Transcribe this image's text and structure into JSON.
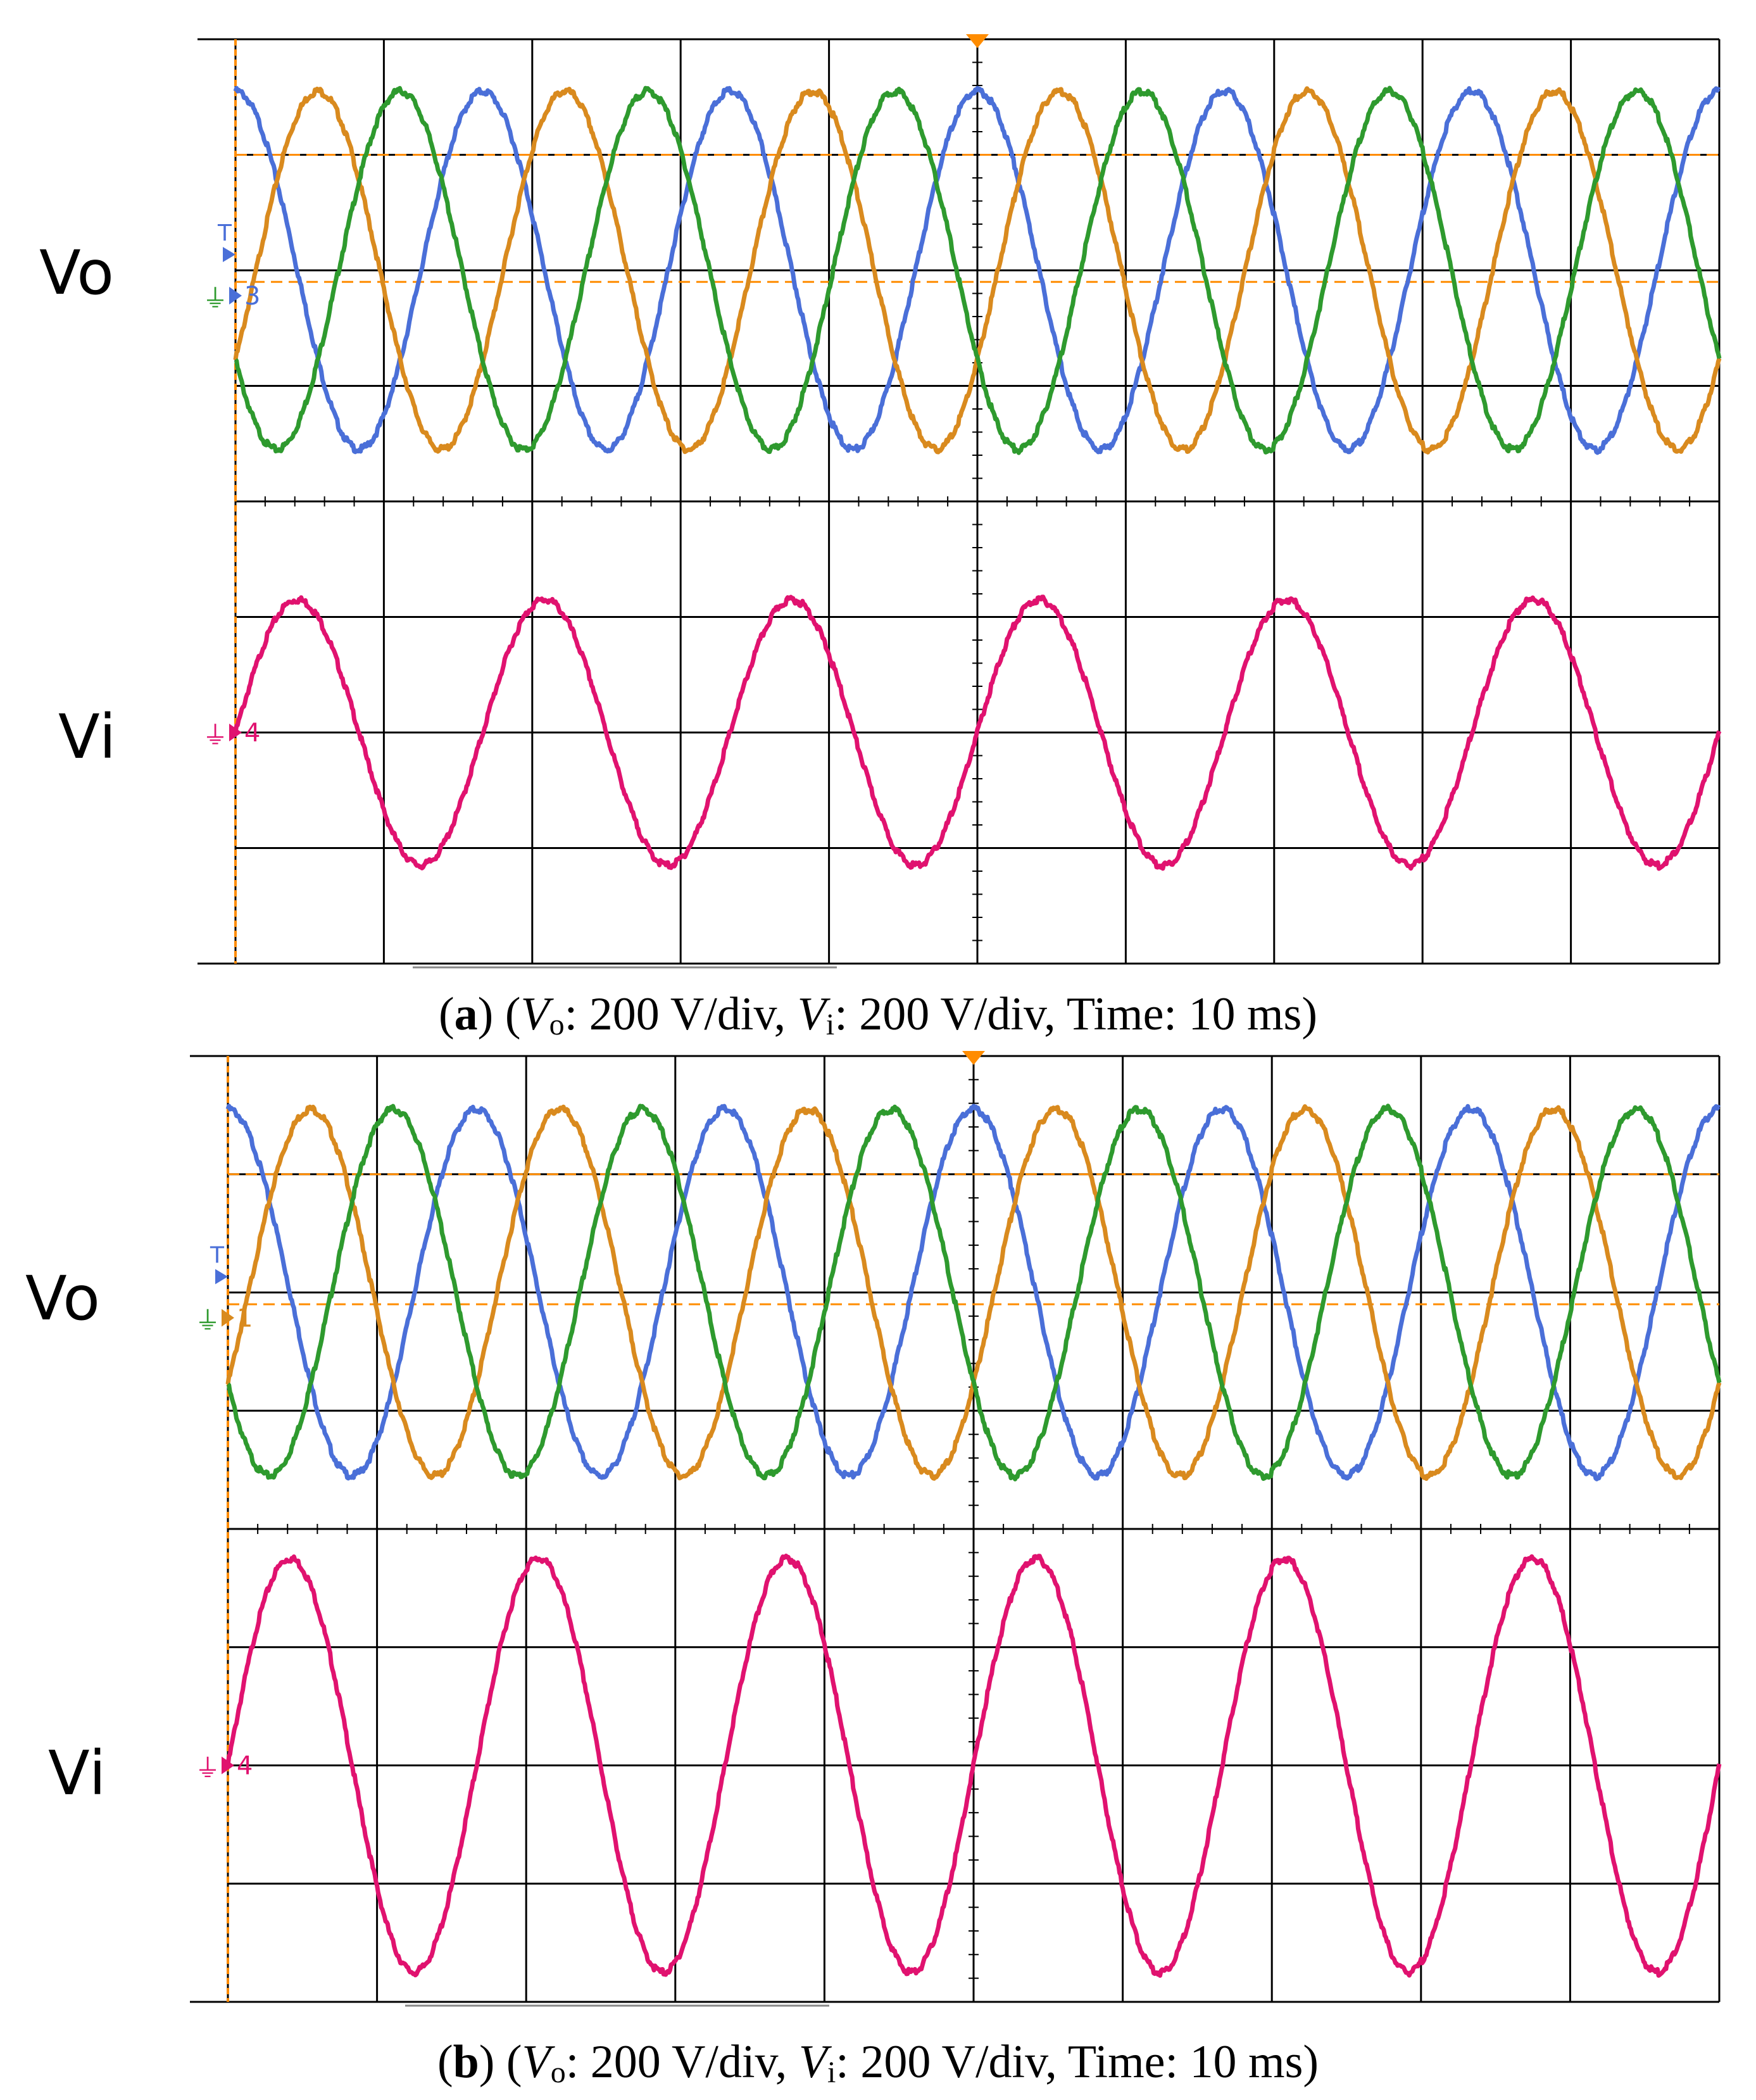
{
  "panels": [
    {
      "id": "a",
      "caption": {
        "letter": "a",
        "vo_sym": "V",
        "vo_sub": "o",
        "vo_text": ": 200 V/div, ",
        "vi_sym": "V",
        "vi_sub": "i",
        "vi_text": ": 200 V/div, Time: 10 ms"
      },
      "labels": {
        "top": "Vo",
        "bottom": "Vi"
      },
      "markers": {
        "trigger": "T",
        "top_channel": "3",
        "bottom_channel": "4"
      }
    },
    {
      "id": "b",
      "caption": {
        "letter": "b",
        "vo_sym": "V",
        "vo_sub": "o",
        "vo_text": ": 200 V/div, ",
        "vi_sym": "V",
        "vi_sub": "i",
        "vi_text": ": 200 V/div, Time: 10 ms"
      },
      "labels": {
        "top": "Vo",
        "bottom": "Vi"
      },
      "markers": {
        "trigger": "T",
        "top_channel": "1",
        "bottom_channel": "4"
      }
    }
  ],
  "colors": {
    "grid": "#000000",
    "phase_a": "#d98a1e",
    "phase_b": "#2e9a2e",
    "phase_c": "#4a6fd8",
    "input": "#e0126f",
    "trigger": "#ff8c00",
    "ref_dashed": "#ff8c00"
  },
  "chart_data": [
    {
      "type": "line",
      "panel": "a",
      "x_divisions": 10,
      "y_divisions": 8,
      "units": {
        "vo_per_div": "200 V/div",
        "vi_per_div": "200 V/div",
        "time": "10 ms"
      },
      "series": [
        {
          "name": "Vo",
          "phase_offset_deg": 0,
          "cycles_on_screen": 6.0,
          "amplitude_div": 1.55,
          "center_div": 2.0,
          "color_key": "phase_c"
        },
        {
          "name": "Vo",
          "phase_offset_deg": -120,
          "cycles_on_screen": 6.0,
          "amplitude_div": 1.55,
          "center_div": 2.0,
          "color_key": "phase_a"
        },
        {
          "name": "Vo",
          "phase_offset_deg": 120,
          "cycles_on_screen": 6.0,
          "amplitude_div": 1.55,
          "center_div": 2.0,
          "color_key": "phase_b"
        },
        {
          "name": "Vi",
          "phase_offset_deg": -90,
          "cycles_on_screen": 6.0,
          "amplitude_div": 1.15,
          "center_div": 6.0,
          "color_key": "input"
        }
      ]
    },
    {
      "type": "line",
      "panel": "b",
      "x_divisions": 10,
      "y_divisions": 8,
      "units": {
        "vo_per_div": "200 V/div",
        "vi_per_div": "200 V/div",
        "time": "10 ms"
      },
      "series": [
        {
          "name": "Vo",
          "phase_offset_deg": 0,
          "cycles_on_screen": 6.0,
          "amplitude_div": 1.55,
          "center_div": 2.0,
          "color_key": "phase_c"
        },
        {
          "name": "Vo",
          "phase_offset_deg": -120,
          "cycles_on_screen": 6.0,
          "amplitude_div": 1.55,
          "center_div": 2.0,
          "color_key": "phase_a"
        },
        {
          "name": "Vo",
          "phase_offset_deg": 120,
          "cycles_on_screen": 6.0,
          "amplitude_div": 1.55,
          "center_div": 2.0,
          "color_key": "phase_b"
        },
        {
          "name": "Vi",
          "phase_offset_deg": -90,
          "cycles_on_screen": 6.0,
          "amplitude_div": 1.75,
          "center_div": 6.0,
          "color_key": "input"
        }
      ]
    }
  ]
}
